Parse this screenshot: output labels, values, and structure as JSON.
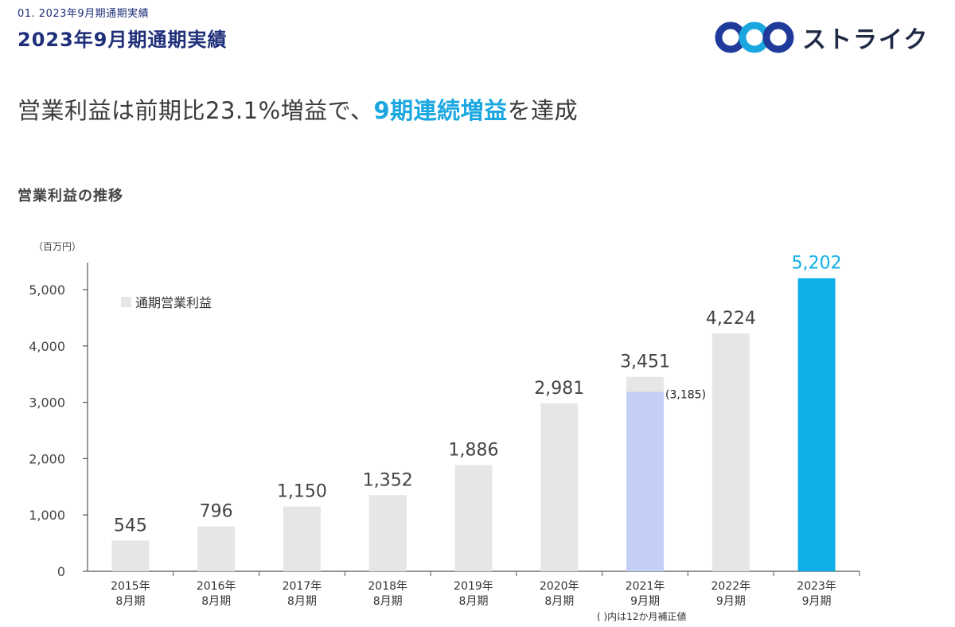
{
  "header": {
    "breadcrumb": "01. 2023年9月期通期実績",
    "title": "2023年9月期通期実績",
    "logo_text": "ストライク"
  },
  "headline": {
    "prefix": "営業利益は前期比23.1%増益で、",
    "accent": "9期連続増益",
    "suffix": "を達成"
  },
  "section_label": "営業利益の推移",
  "footnote": "( )内は12か月補正値",
  "colors": {
    "bar": "#e6e6e6",
    "highlight": "#0eaee8",
    "adjusted": "#c3cff5",
    "accent": "#1aa7e0",
    "brand": "#1f2f7a"
  },
  "chart_data": {
    "type": "bar",
    "unit_label": "（百万円）",
    "categories": [
      [
        "2015年",
        "8月期"
      ],
      [
        "2016年",
        "8月期"
      ],
      [
        "2017年",
        "8月期"
      ],
      [
        "2018年",
        "8月期"
      ],
      [
        "2019年",
        "8月期"
      ],
      [
        "2020年",
        "8月期"
      ],
      [
        "2021年",
        "9月期"
      ],
      [
        "2022年",
        "9月期"
      ],
      [
        "2023年",
        "9月期"
      ]
    ],
    "series": [
      {
        "name": "通期営業利益",
        "values": [
          545,
          796,
          1150,
          1352,
          1886,
          2981,
          3451,
          4224,
          5202
        ]
      }
    ],
    "value_labels": [
      "545",
      "796",
      "1,150",
      "1,352",
      "1,886",
      "2,981",
      "3,451",
      "4,224",
      "5,202"
    ],
    "adjusted": {
      "index": 6,
      "value": 3185,
      "label": "(3,185)"
    },
    "highlight_index": 8,
    "ylim": [
      0,
      5500
    ],
    "yticks": [
      0,
      1000,
      2000,
      3000,
      4000,
      5000
    ],
    "ytick_labels": [
      "0",
      "1,000",
      "2,000",
      "3,000",
      "4,000",
      "5,000"
    ],
    "legend": "top-left",
    "grid": false
  }
}
